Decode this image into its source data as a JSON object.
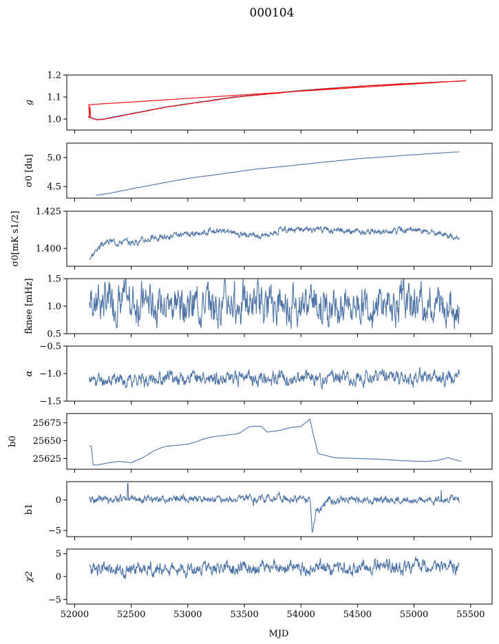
{
  "title": "000104",
  "chart_data": {
    "type": "line",
    "shared_x": {
      "label": "MJD",
      "range": [
        51930,
        55690
      ],
      "ticks": [
        52000,
        52500,
        53000,
        53500,
        54000,
        54500,
        55000,
        55500
      ],
      "tick_labels": [
        "52000",
        "52500",
        "53000",
        "53500",
        "54000",
        "54500",
        "55000",
        "55500"
      ]
    },
    "panels": [
      {
        "key": "g",
        "ylabel": "g",
        "ylabel_html": "<tspan font-style='italic'>g</tspan>",
        "ylim": [
          0.95,
          1.2
        ],
        "yticks": [
          1.0,
          1.1,
          1.2
        ],
        "ytick_labels": [
          "1.0",
          "1.1",
          "1.2"
        ],
        "series": [
          {
            "color": "#4c72a6",
            "kind": "smooth",
            "points": [
              [
                52120,
                1.012
              ],
              [
                52170,
                1.002
              ],
              [
                52200,
                0.998
              ],
              [
                52250,
                1.0
              ],
              [
                52400,
                1.015
              ],
              [
                52600,
                1.035
              ],
              [
                52800,
                1.055
              ],
              [
                53000,
                1.07
              ],
              [
                53200,
                1.085
              ],
              [
                53400,
                1.1
              ],
              [
                53600,
                1.11
              ],
              [
                53800,
                1.12
              ],
              [
                54000,
                1.13
              ],
              [
                54200,
                1.138
              ],
              [
                54400,
                1.145
              ],
              [
                54600,
                1.152
              ],
              [
                54800,
                1.158
              ],
              [
                55000,
                1.163
              ],
              [
                55200,
                1.168
              ],
              [
                55400,
                1.172
              ],
              [
                55450,
                1.174
              ]
            ]
          },
          {
            "color": "#ff0000",
            "kind": "smooth",
            "points": [
              [
                52120,
                1.01
              ],
              [
                52170,
                1.0
              ],
              [
                52200,
                0.996
              ],
              [
                52250,
                0.998
              ],
              [
                52400,
                1.013
              ],
              [
                52600,
                1.033
              ],
              [
                52800,
                1.053
              ],
              [
                53000,
                1.068
              ],
              [
                53200,
                1.083
              ],
              [
                53400,
                1.098
              ],
              [
                53600,
                1.108
              ],
              [
                53800,
                1.118
              ],
              [
                54000,
                1.128
              ],
              [
                54200,
                1.136
              ],
              [
                54400,
                1.144
              ],
              [
                54600,
                1.151
              ],
              [
                54800,
                1.157
              ],
              [
                55000,
                1.162
              ],
              [
                55200,
                1.167
              ],
              [
                55400,
                1.172
              ],
              [
                55460,
                1.174
              ]
            ],
            "spike": [
              [
                52125,
                1.065
              ],
              [
                52130,
                1.01
              ],
              [
                52135,
                1.058
              ],
              [
                52140,
                1.005
              ]
            ]
          }
        ]
      },
      {
        "key": "sigma0_du",
        "ylabel": "σ0 [du]",
        "ylim": [
          4.3,
          5.25
        ],
        "yticks": [
          4.5,
          5.0
        ],
        "ytick_labels": [
          "4.5",
          "5.0"
        ],
        "series": [
          {
            "color": "#4c72a6",
            "kind": "smooth",
            "points": [
              [
                52190,
                4.35
              ],
              [
                52300,
                4.38
              ],
              [
                52500,
                4.46
              ],
              [
                52800,
                4.57
              ],
              [
                53000,
                4.64
              ],
              [
                53300,
                4.72
              ],
              [
                53600,
                4.8
              ],
              [
                54000,
                4.88
              ],
              [
                54500,
                4.98
              ],
              [
                55000,
                5.05
              ],
              [
                55400,
                5.1
              ]
            ]
          }
        ]
      },
      {
        "key": "sigma0_mk",
        "ylabel": "σ0[mK s1/2]",
        "ylim": [
          1.388,
          1.425
        ],
        "yticks": [
          1.4,
          1.425
        ],
        "ytick_labels": [
          "1.400",
          "1.425"
        ],
        "series": [
          {
            "color": "#4c72a6",
            "kind": "noisy",
            "seed": 3,
            "amp": 0.0015,
            "points": [
              [
                52130,
                1.393
              ],
              [
                52200,
                1.4
              ],
              [
                52300,
                1.405
              ],
              [
                52500,
                1.404
              ],
              [
                52700,
                1.407
              ],
              [
                53000,
                1.409
              ],
              [
                53200,
                1.412
              ],
              [
                53400,
                1.411
              ],
              [
                53600,
                1.408
              ],
              [
                53800,
                1.412
              ],
              [
                54000,
                1.413
              ],
              [
                54300,
                1.412
              ],
              [
                54600,
                1.411
              ],
              [
                55000,
                1.412
              ],
              [
                55300,
                1.409
              ],
              [
                55400,
                1.406
              ]
            ]
          }
        ]
      },
      {
        "key": "fknee",
        "ylabel": "fknee [mHz]",
        "ylim": [
          0.5,
          1.5
        ],
        "yticks": [
          0.5,
          1.0,
          1.5
        ],
        "ytick_labels": [
          "0.5",
          "1.0",
          "1.5"
        ],
        "series": [
          {
            "color": "#4c72a6",
            "kind": "noisy",
            "seed": 7,
            "amp": 0.25,
            "points": [
              [
                52130,
                1.1
              ],
              [
                53000,
                1.05
              ],
              [
                54000,
                1.05
              ],
              [
                55000,
                1.05
              ],
              [
                55400,
                1.0
              ]
            ]
          }
        ]
      },
      {
        "key": "alpha",
        "ylabel": "α",
        "ylim": [
          -1.5,
          -0.5
        ],
        "yticks": [
          -1.5,
          -1.0,
          -0.5
        ],
        "ytick_labels": [
          "−1.5",
          "−1.0",
          "−0.5"
        ],
        "series": [
          {
            "color": "#4c72a6",
            "kind": "noisy",
            "seed": 11,
            "amp": 0.09,
            "points": [
              [
                52130,
                -1.12
              ],
              [
                53000,
                -1.08
              ],
              [
                54000,
                -1.08
              ],
              [
                55000,
                -1.07
              ],
              [
                55400,
                -1.05
              ]
            ]
          }
        ]
      },
      {
        "key": "b0",
        "ylabel": "b0",
        "ylim": [
          25610,
          25688
        ],
        "yticks": [
          25625,
          25650,
          25675
        ],
        "ytick_labels": [
          "25625",
          "25650",
          "25675"
        ],
        "series": [
          {
            "color": "#4c72a6",
            "kind": "smooth",
            "points": [
              [
                52130,
                25643
              ],
              [
                52150,
                25642
              ],
              [
                52160,
                25616
              ],
              [
                52200,
                25616
              ],
              [
                52300,
                25619
              ],
              [
                52400,
                25621
              ],
              [
                52500,
                25619
              ],
              [
                52600,
                25626
              ],
              [
                52700,
                25636
              ],
              [
                52800,
                25642
              ],
              [
                53000,
                25645
              ],
              [
                53200,
                25655
              ],
              [
                53300,
                25657
              ],
              [
                53450,
                25660
              ],
              [
                53550,
                25670
              ],
              [
                53650,
                25670
              ],
              [
                53700,
                25662
              ],
              [
                53800,
                25664
              ],
              [
                53900,
                25668
              ],
              [
                54000,
                25670
              ],
              [
                54080,
                25680
              ],
              [
                54100,
                25665
              ],
              [
                54150,
                25632
              ],
              [
                54300,
                25626
              ],
              [
                54500,
                25625
              ],
              [
                54700,
                25624
              ],
              [
                54900,
                25622
              ],
              [
                55100,
                25621
              ],
              [
                55200,
                25622
              ],
              [
                55300,
                25626
              ],
              [
                55420,
                25621
              ]
            ]
          }
        ]
      },
      {
        "key": "b1",
        "ylabel": "b1",
        "ylim": [
          -6,
          3
        ],
        "yticks": [
          -5,
          0
        ],
        "ytick_labels": [
          "−5",
          "0"
        ],
        "series": [
          {
            "color": "#4c72a6",
            "kind": "noisy",
            "seed": 19,
            "amp": 0.45,
            "points": [
              [
                52130,
                0.1
              ],
              [
                53000,
                0.2
              ],
              [
                54000,
                0.3
              ],
              [
                54080,
                0.3
              ],
              [
                54100,
                -5.0
              ],
              [
                54130,
                -2.0
              ],
              [
                54250,
                0.0
              ],
              [
                55000,
                0.0
              ],
              [
                55400,
                0.1
              ]
            ],
            "spikes": [
              [
                52470,
                2.7
              ],
              [
                53580,
                -1.0
              ],
              [
                55240,
                1.6
              ]
            ]
          }
        ]
      },
      {
        "key": "chi2",
        "ylabel": "χ2",
        "ylim": [
          -6,
          6
        ],
        "yticks": [
          -5,
          0,
          5
        ],
        "ytick_labels": [
          "−5",
          "0",
          "5"
        ],
        "series": [
          {
            "color": "#4c72a6",
            "kind": "noisy",
            "seed": 23,
            "amp": 1.1,
            "points": [
              [
                52130,
                1.5
              ],
              [
                53000,
                1.8
              ],
              [
                54000,
                2.0
              ],
              [
                55000,
                2.0
              ],
              [
                55400,
                2.0
              ]
            ]
          }
        ]
      }
    ]
  }
}
